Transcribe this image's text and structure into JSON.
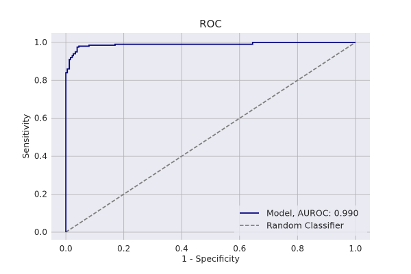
{
  "chart_data": {
    "type": "line",
    "title": "ROC",
    "xlabel": "1 - Specificity",
    "ylabel": "Sensitivity",
    "xlim": [
      -0.05,
      1.05
    ],
    "ylim": [
      -0.04,
      1.05
    ],
    "xticks": [
      0.0,
      0.2,
      0.4,
      0.6,
      0.8,
      1.0
    ],
    "xtick_labels": [
      "0.0",
      "0.2",
      "0.4",
      "0.6",
      "0.8",
      "1.0"
    ],
    "yticks": [
      0.0,
      0.2,
      0.4,
      0.6,
      0.8,
      1.0
    ],
    "ytick_labels": [
      "0.0",
      "0.2",
      "0.4",
      "0.6",
      "0.8",
      "1.0"
    ],
    "grid": true,
    "legend_position": "lower-right",
    "series": [
      {
        "name": "Model, AUROC: 0.990",
        "color": "#000080",
        "style": "solid",
        "x": [
          0.0,
          0.0,
          0.005,
          0.005,
          0.012,
          0.012,
          0.016,
          0.016,
          0.022,
          0.022,
          0.026,
          0.026,
          0.033,
          0.033,
          0.039,
          0.039,
          0.045,
          0.045,
          0.08,
          0.08,
          0.17,
          0.17,
          0.645,
          0.645,
          1.0
        ],
        "y": [
          0.0,
          0.84,
          0.84,
          0.86,
          0.86,
          0.91,
          0.91,
          0.92,
          0.92,
          0.93,
          0.93,
          0.94,
          0.94,
          0.95,
          0.95,
          0.975,
          0.975,
          0.98,
          0.98,
          0.985,
          0.985,
          0.99,
          0.99,
          1.0,
          1.0
        ]
      },
      {
        "name": "Random Classifier",
        "color": "#808080",
        "style": "dashed",
        "x": [
          0.0,
          1.0
        ],
        "y": [
          0.0,
          1.0
        ]
      }
    ]
  },
  "colors": {
    "plot_background": "#eaeaf2",
    "grid": "#b0b0b0",
    "legend_background": "#eaeaf2"
  }
}
